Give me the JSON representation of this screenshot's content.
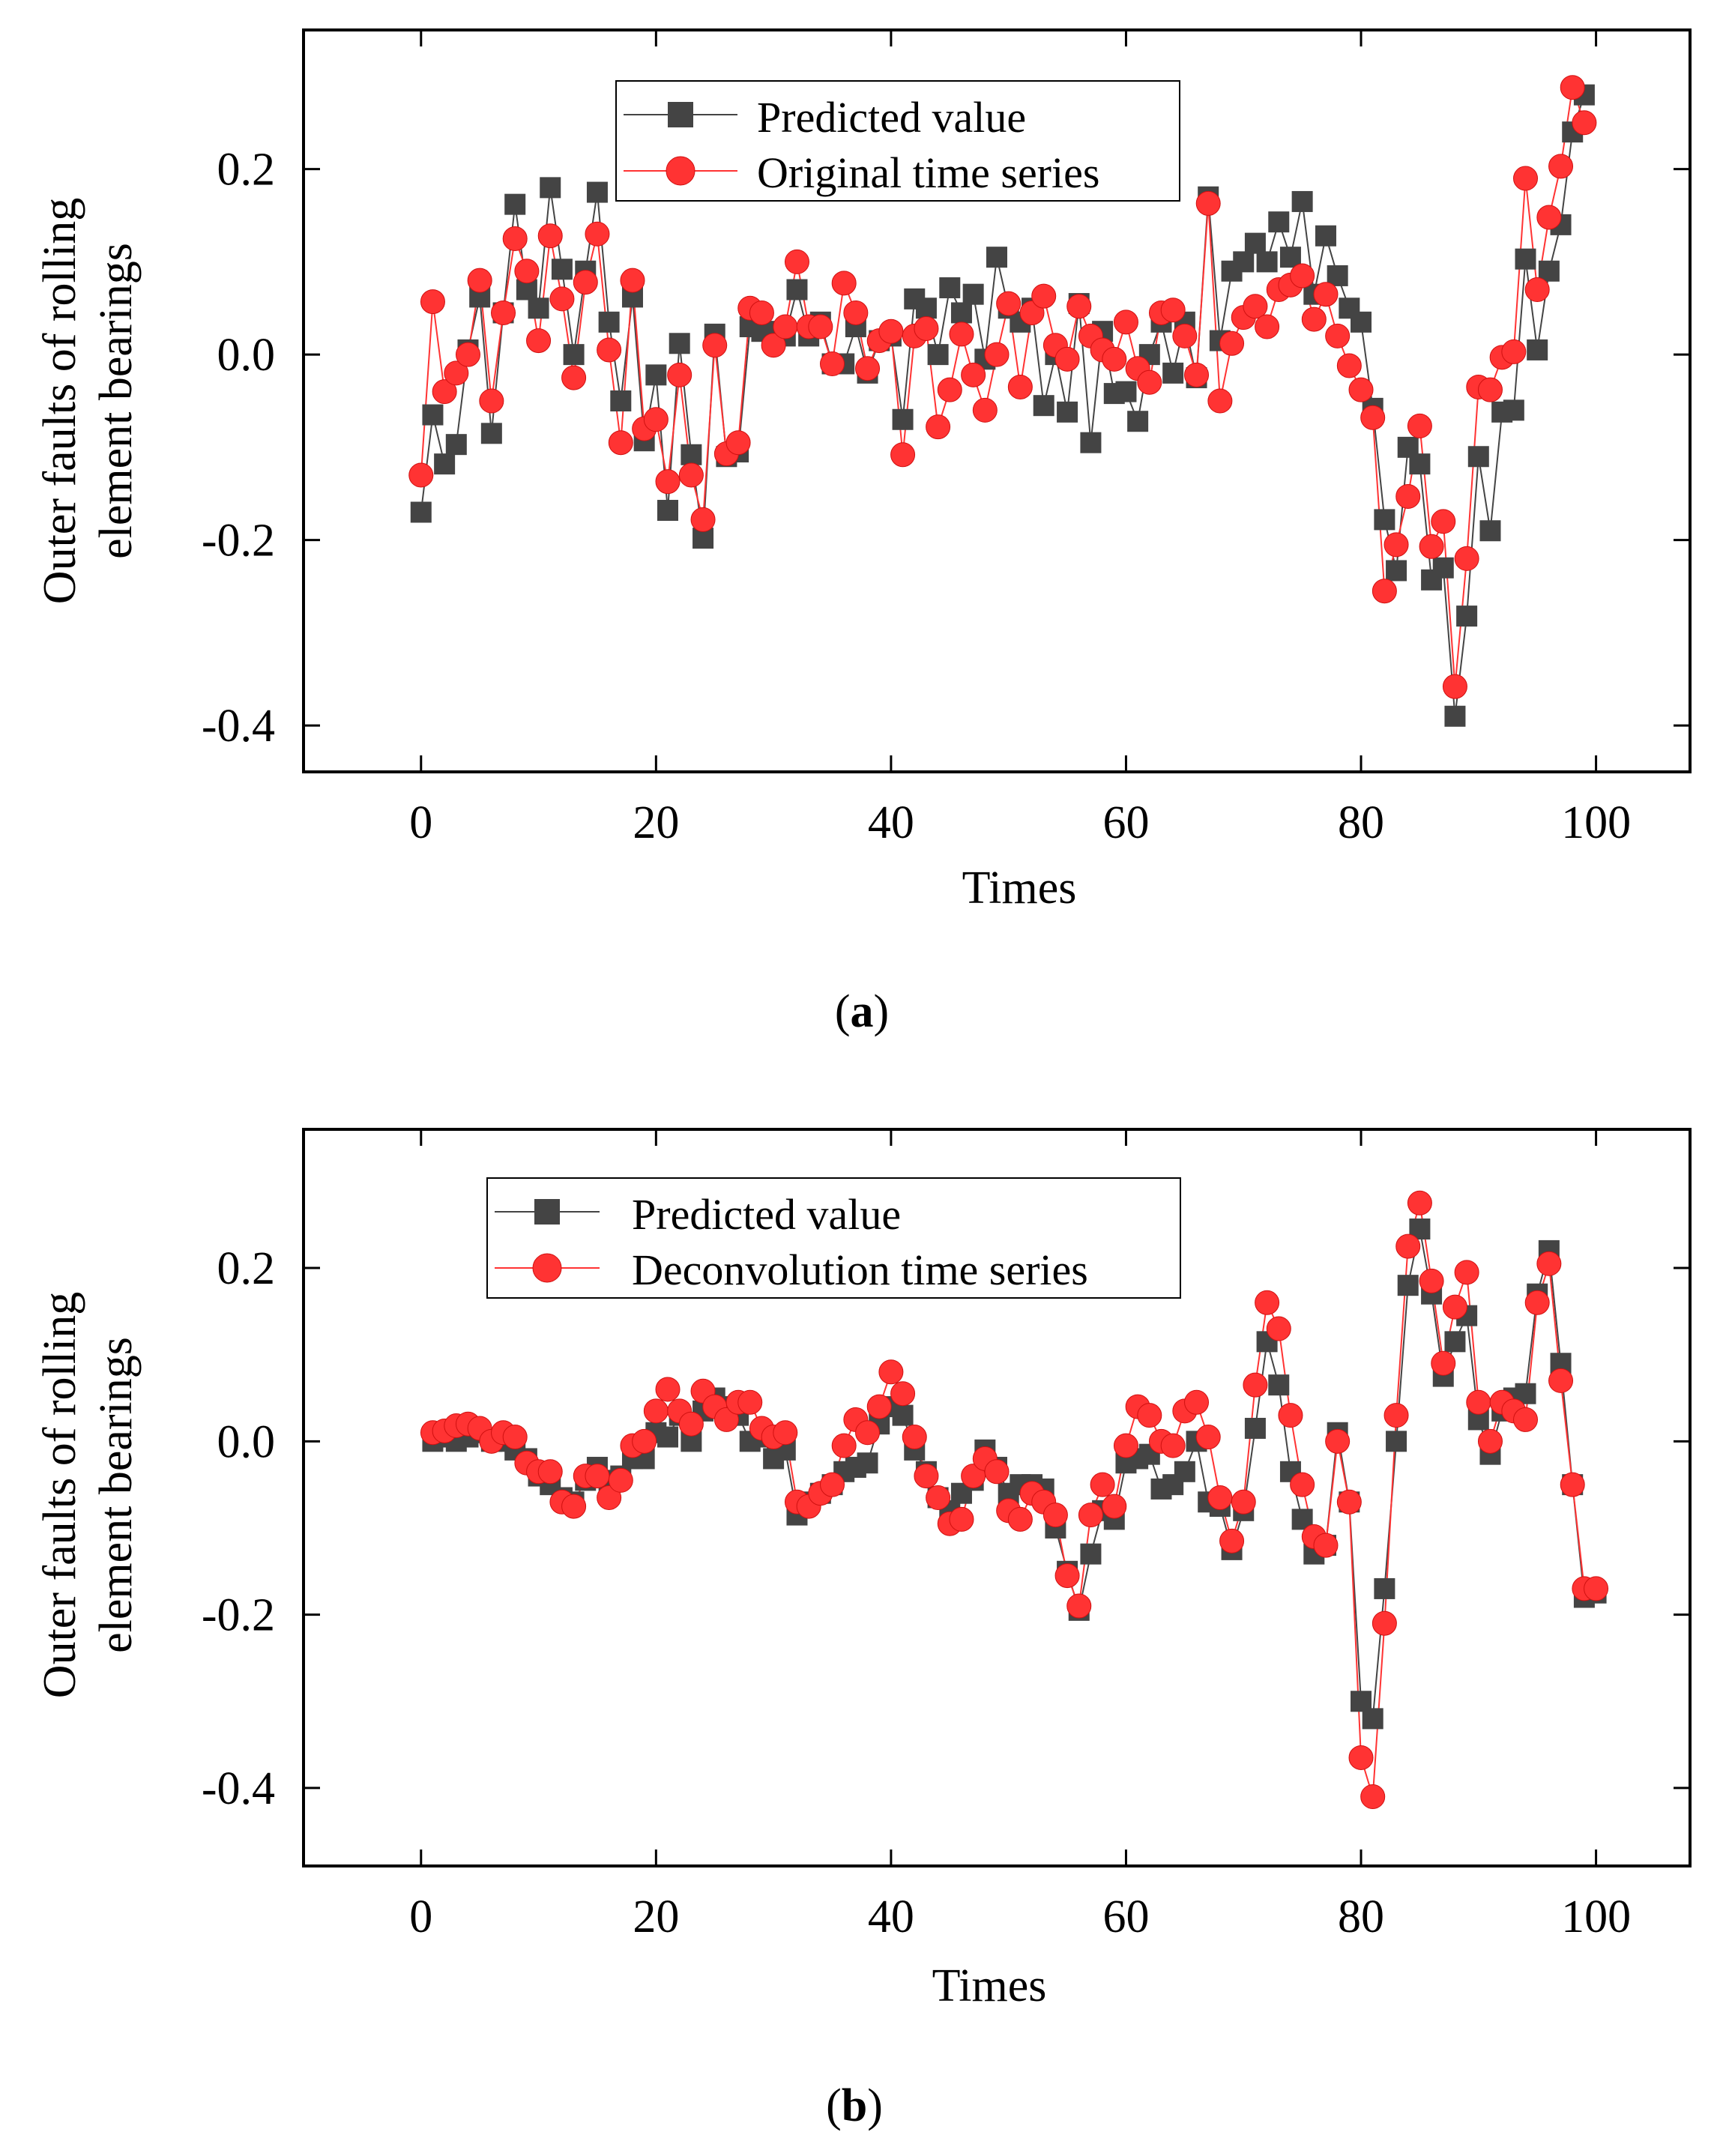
{
  "colors": {
    "predicted": "#444444",
    "original": "#ff3333",
    "original_stroke": "#d01010",
    "axis": "#000000"
  },
  "chart_data": [
    {
      "type": "line",
      "panel_label": "a",
      "xlabel": "Times",
      "ylabel_line1": "Outer faults of rolling",
      "ylabel_line2": "element bearings",
      "xlim": [
        -10,
        108
      ],
      "ylim": [
        -0.45,
        0.35
      ],
      "xticks": [
        0,
        20,
        40,
        60,
        80,
        100
      ],
      "yticks": [
        -0.4,
        -0.2,
        0.0,
        0.2
      ],
      "ytick_labels": [
        "-0.4",
        "-0.2",
        "0.0",
        "0.2"
      ],
      "legend_position": "top-center",
      "series": [
        {
          "name": "Predicted value",
          "marker": "square",
          "x": [
            0,
            1,
            2,
            3,
            4,
            5,
            6,
            7,
            8,
            9,
            10,
            11,
            12,
            13,
            14,
            15,
            16,
            17,
            18,
            19,
            20,
            21,
            22,
            23,
            24,
            25,
            26,
            27,
            28,
            29,
            30,
            31,
            32,
            33,
            34,
            35,
            36,
            37,
            38,
            39,
            40,
            41,
            42,
            43,
            44,
            45,
            46,
            47,
            48,
            49,
            50,
            51,
            52,
            53,
            54,
            55,
            56,
            57,
            58,
            59,
            60,
            61,
            62,
            63,
            64,
            65,
            66,
            67,
            68,
            69,
            70,
            71,
            72,
            73,
            74,
            75,
            76,
            77,
            78,
            79,
            80,
            81,
            82,
            83,
            84,
            85,
            86,
            87,
            88,
            89,
            90,
            91,
            92,
            93,
            94,
            95,
            96,
            97,
            98,
            99
          ],
          "values": [
            -0.17,
            -0.065,
            -0.118,
            -0.097,
            0.005,
            0.062,
            -0.085,
            0.045,
            0.162,
            0.07,
            0.05,
            0.18,
            0.092,
            0.0,
            0.09,
            0.175,
            0.035,
            -0.05,
            0.062,
            -0.093,
            -0.022,
            -0.168,
            0.012,
            -0.108,
            -0.198,
            0.022,
            -0.11,
            -0.105,
            0.03,
            0.025,
            0.025,
            0.02,
            0.07,
            0.02,
            0.035,
            -0.01,
            -0.01,
            0.03,
            -0.02,
            0.015,
            0.02,
            -0.07,
            0.06,
            0.05,
            0.0,
            0.072,
            0.045,
            0.065,
            -0.005,
            0.105,
            0.05,
            0.035,
            0.05,
            -0.055,
            0.0,
            -0.062,
            0.055,
            -0.095,
            0.025,
            -0.042,
            -0.04,
            -0.072,
            0.0,
            0.035,
            -0.02,
            0.035,
            -0.025,
            0.17,
            0.015,
            0.09,
            0.1,
            0.12,
            0.1,
            0.143,
            0.105,
            0.165,
            0.065,
            0.128,
            0.085,
            0.05,
            0.035,
            -0.058,
            -0.178,
            -0.233,
            -0.1,
            -0.118,
            -0.243,
            -0.23,
            -0.39,
            -0.282,
            -0.11,
            -0.19,
            -0.062,
            -0.06,
            0.103,
            0.005,
            0.09,
            0.14,
            0.24,
            0.28
          ]
        },
        {
          "name": "Original time series",
          "marker": "circle",
          "x": [
            0,
            1,
            2,
            3,
            4,
            5,
            6,
            7,
            8,
            9,
            10,
            11,
            12,
            13,
            14,
            15,
            16,
            17,
            18,
            19,
            20,
            21,
            22,
            23,
            24,
            25,
            26,
            27,
            28,
            29,
            30,
            31,
            32,
            33,
            34,
            35,
            36,
            37,
            38,
            39,
            40,
            41,
            42,
            43,
            44,
            45,
            46,
            47,
            48,
            49,
            50,
            51,
            52,
            53,
            54,
            55,
            56,
            57,
            58,
            59,
            60,
            61,
            62,
            63,
            64,
            65,
            66,
            67,
            68,
            69,
            70,
            71,
            72,
            73,
            74,
            75,
            76,
            77,
            78,
            79,
            80,
            81,
            82,
            83,
            84,
            85,
            86,
            87,
            88,
            89,
            90,
            91,
            92,
            93,
            94,
            95,
            96,
            97,
            98,
            99
          ],
          "values": [
            -0.13,
            0.057,
            -0.04,
            -0.02,
            0.0,
            0.08,
            -0.05,
            0.045,
            0.125,
            0.09,
            0.015,
            0.128,
            0.06,
            -0.025,
            0.078,
            0.13,
            0.005,
            -0.095,
            0.08,
            -0.08,
            -0.07,
            -0.137,
            -0.022,
            -0.13,
            -0.178,
            0.01,
            -0.107,
            -0.095,
            0.05,
            0.045,
            0.01,
            0.03,
            0.1,
            0.03,
            0.03,
            -0.01,
            0.077,
            0.045,
            -0.015,
            0.015,
            0.025,
            -0.108,
            0.02,
            0.028,
            -0.078,
            -0.038,
            0.022,
            -0.022,
            -0.06,
            0.0,
            0.055,
            -0.035,
            0.045,
            0.063,
            0.01,
            -0.005,
            0.052,
            0.02,
            0.005,
            -0.005,
            0.035,
            -0.015,
            -0.03,
            0.045,
            0.048,
            0.02,
            -0.022,
            0.163,
            -0.05,
            0.012,
            0.04,
            0.052,
            0.03,
            0.07,
            0.075,
            0.085,
            0.038,
            0.065,
            0.02,
            -0.012,
            -0.038,
            -0.068,
            -0.255,
            -0.205,
            -0.153,
            -0.077,
            -0.207,
            -0.18,
            -0.358,
            -0.22,
            -0.035,
            -0.038,
            -0.003,
            0.003,
            0.19,
            0.07,
            0.148,
            0.203,
            0.288,
            0.25
          ]
        }
      ]
    },
    {
      "type": "line",
      "panel_label": "b",
      "xlabel": "Times",
      "ylabel_line1": "Outer faults of rolling",
      "ylabel_line2": "element bearings",
      "xlim": [
        -10,
        108
      ],
      "ylim": [
        -0.49,
        0.36
      ],
      "xticks": [
        0,
        20,
        40,
        60,
        80,
        100
      ],
      "yticks": [
        -0.4,
        -0.2,
        0.0,
        0.2
      ],
      "ytick_labels": [
        "-0.4",
        "-0.2",
        "0.0",
        "0.2"
      ],
      "legend_position": "top-center",
      "series": [
        {
          "name": "Predicted value",
          "marker": "square",
          "x": [
            1,
            2,
            3,
            4,
            5,
            6,
            7,
            8,
            9,
            10,
            11,
            12,
            13,
            14,
            15,
            16,
            17,
            18,
            19,
            20,
            21,
            22,
            23,
            24,
            25,
            26,
            27,
            28,
            29,
            30,
            31,
            32,
            33,
            34,
            35,
            36,
            37,
            38,
            39,
            40,
            41,
            42,
            43,
            44,
            45,
            46,
            47,
            48,
            49,
            50,
            51,
            52,
            53,
            54,
            55,
            56,
            57,
            58,
            59,
            60,
            61,
            62,
            63,
            64,
            65,
            66,
            67,
            68,
            69,
            70,
            71,
            72,
            73,
            74,
            75,
            76,
            77,
            78,
            79,
            80,
            81,
            82,
            83,
            84,
            85,
            86,
            87,
            88,
            89,
            90,
            91,
            92,
            93,
            94,
            95,
            96,
            97,
            98,
            99,
            100
          ],
          "values": [
            0.0,
            0.005,
            0.0,
            0.005,
            0.01,
            0.0,
            0.0,
            -0.01,
            -0.02,
            -0.04,
            -0.05,
            -0.065,
            -0.07,
            -0.045,
            -0.03,
            -0.045,
            -0.04,
            -0.02,
            -0.02,
            0.01,
            0.005,
            0.03,
            0.0,
            0.035,
            0.05,
            0.04,
            0.03,
            0.0,
            0.005,
            -0.02,
            -0.01,
            -0.085,
            -0.07,
            -0.06,
            -0.05,
            -0.035,
            -0.03,
            -0.025,
            0.02,
            0.04,
            0.03,
            -0.01,
            -0.035,
            -0.065,
            -0.08,
            -0.06,
            -0.045,
            -0.01,
            -0.03,
            -0.06,
            -0.05,
            -0.05,
            -0.055,
            -0.1,
            -0.15,
            -0.195,
            -0.13,
            -0.08,
            -0.09,
            -0.025,
            -0.02,
            -0.015,
            -0.055,
            -0.05,
            -0.035,
            0.0,
            -0.07,
            -0.075,
            -0.125,
            -0.08,
            0.015,
            0.115,
            0.065,
            -0.035,
            -0.09,
            -0.13,
            -0.12,
            0.01,
            -0.07,
            -0.3,
            -0.32,
            -0.17,
            0.0,
            0.18,
            0.245,
            0.17,
            0.075,
            0.115,
            0.145,
            0.025,
            -0.015,
            0.035,
            0.05,
            0.055,
            0.17,
            0.22,
            0.09,
            -0.05,
            -0.18,
            -0.175
          ]
        },
        {
          "name": "Deconvolution time series",
          "marker": "circle",
          "x": [
            1,
            2,
            3,
            4,
            5,
            6,
            7,
            8,
            9,
            10,
            11,
            12,
            13,
            14,
            15,
            16,
            17,
            18,
            19,
            20,
            21,
            22,
            23,
            24,
            25,
            26,
            27,
            28,
            29,
            30,
            31,
            32,
            33,
            34,
            35,
            36,
            37,
            38,
            39,
            40,
            41,
            42,
            43,
            44,
            45,
            46,
            47,
            48,
            49,
            50,
            51,
            52,
            53,
            54,
            55,
            56,
            57,
            58,
            59,
            60,
            61,
            62,
            63,
            64,
            65,
            66,
            67,
            68,
            69,
            70,
            71,
            72,
            73,
            74,
            75,
            76,
            77,
            78,
            79,
            80,
            81,
            82,
            83,
            84,
            85,
            86,
            87,
            88,
            89,
            90,
            91,
            92,
            93,
            94,
            95,
            96,
            97,
            98,
            99,
            100
          ],
          "values": [
            0.01,
            0.012,
            0.018,
            0.02,
            0.015,
            0.0,
            0.01,
            0.005,
            -0.025,
            -0.035,
            -0.035,
            -0.07,
            -0.075,
            -0.04,
            -0.04,
            -0.065,
            -0.045,
            -0.005,
            0.0,
            0.035,
            0.06,
            0.035,
            0.02,
            0.058,
            0.04,
            0.025,
            0.045,
            0.045,
            0.015,
            0.005,
            0.01,
            -0.07,
            -0.075,
            -0.06,
            -0.05,
            -0.005,
            0.025,
            0.01,
            0.04,
            0.08,
            0.055,
            0.005,
            -0.04,
            -0.065,
            -0.095,
            -0.09,
            -0.04,
            -0.02,
            -0.035,
            -0.08,
            -0.09,
            -0.06,
            -0.07,
            -0.085,
            -0.155,
            -0.19,
            -0.085,
            -0.05,
            -0.075,
            -0.005,
            0.04,
            0.03,
            0.0,
            -0.005,
            0.035,
            0.045,
            0.005,
            -0.065,
            -0.115,
            -0.07,
            0.065,
            0.16,
            0.13,
            0.03,
            -0.05,
            -0.11,
            -0.12,
            0.0,
            -0.07,
            -0.365,
            -0.41,
            -0.21,
            0.03,
            0.225,
            0.275,
            0.185,
            0.09,
            0.155,
            0.195,
            0.045,
            0.0,
            0.045,
            0.035,
            0.025,
            0.16,
            0.205,
            0.07,
            -0.05,
            -0.17,
            -0.17
          ]
        }
      ]
    }
  ]
}
